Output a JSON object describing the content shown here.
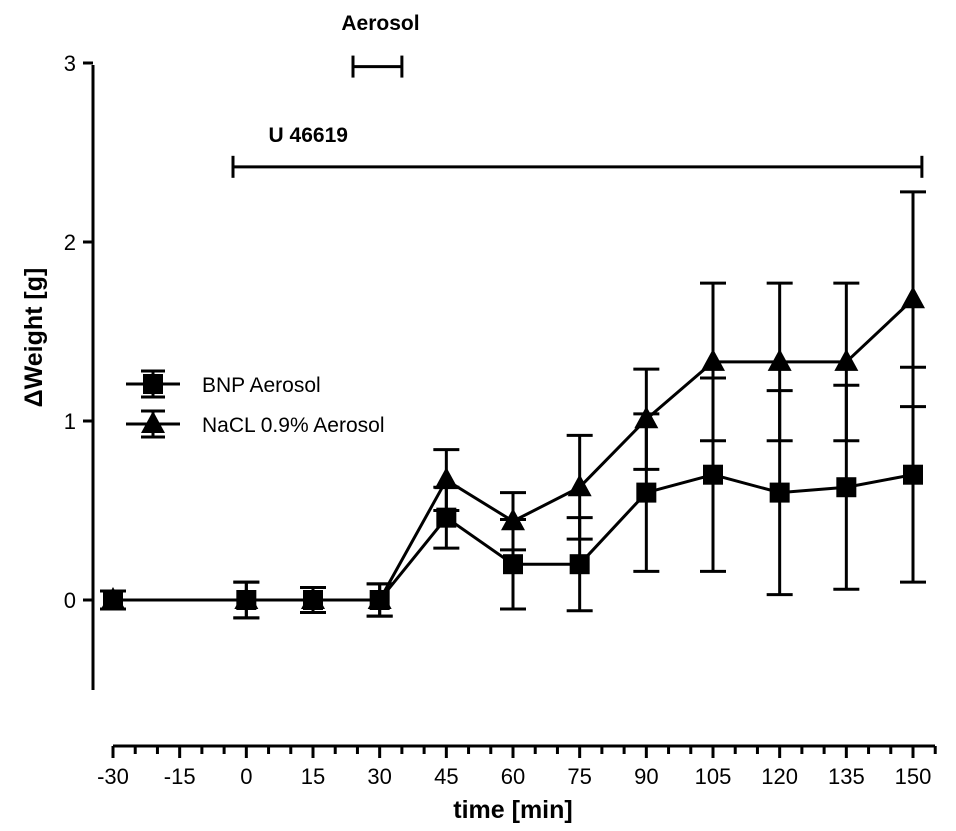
{
  "chart_data": {
    "type": "line",
    "xlabel": "time [min]",
    "ylabel": "ΔWeight [g]",
    "xlim": [
      -30,
      150
    ],
    "ylim": [
      -0.5,
      3
    ],
    "x_ticks": [
      "-30",
      "-15",
      "0",
      "15",
      "30",
      "45",
      "60",
      "75",
      "90",
      "105",
      "120",
      "135",
      "150"
    ],
    "y_ticks": [
      "0",
      "1",
      "2",
      "3"
    ],
    "legend_position": "left",
    "series": [
      {
        "name": "BNP Aerosol",
        "marker": "square",
        "x": [
          -30,
          0,
          15,
          30,
          45,
          60,
          75,
          90,
          105,
          120,
          135,
          150
        ],
        "values": [
          0,
          0,
          0,
          0,
          0.46,
          0.2,
          0.2,
          0.6,
          0.7,
          0.6,
          0.63,
          0.7
        ],
        "error": [
          0.05,
          0.1,
          0.07,
          0.09,
          0.17,
          0.25,
          0.26,
          0.44,
          0.54,
          0.57,
          0.57,
          0.6
        ]
      },
      {
        "name": "NaCL 0.9% Aerosol",
        "marker": "triangle",
        "x": [
          -30,
          0,
          15,
          30,
          45,
          60,
          75,
          90,
          105,
          120,
          135,
          150
        ],
        "values": [
          0,
          0,
          0,
          0,
          0.67,
          0.44,
          0.63,
          1.01,
          1.33,
          1.33,
          1.33,
          1.68
        ],
        "error": [
          0.05,
          0.1,
          0.07,
          0.09,
          0.17,
          0.16,
          0.29,
          0.28,
          0.44,
          0.44,
          0.44,
          0.6
        ]
      }
    ],
    "annotations": [
      {
        "label": "Aerosol",
        "from": 24,
        "to": 35,
        "y": 2.98
      },
      {
        "label": "U 46619",
        "from": -3,
        "to": 152,
        "y": 2.42
      }
    ]
  }
}
